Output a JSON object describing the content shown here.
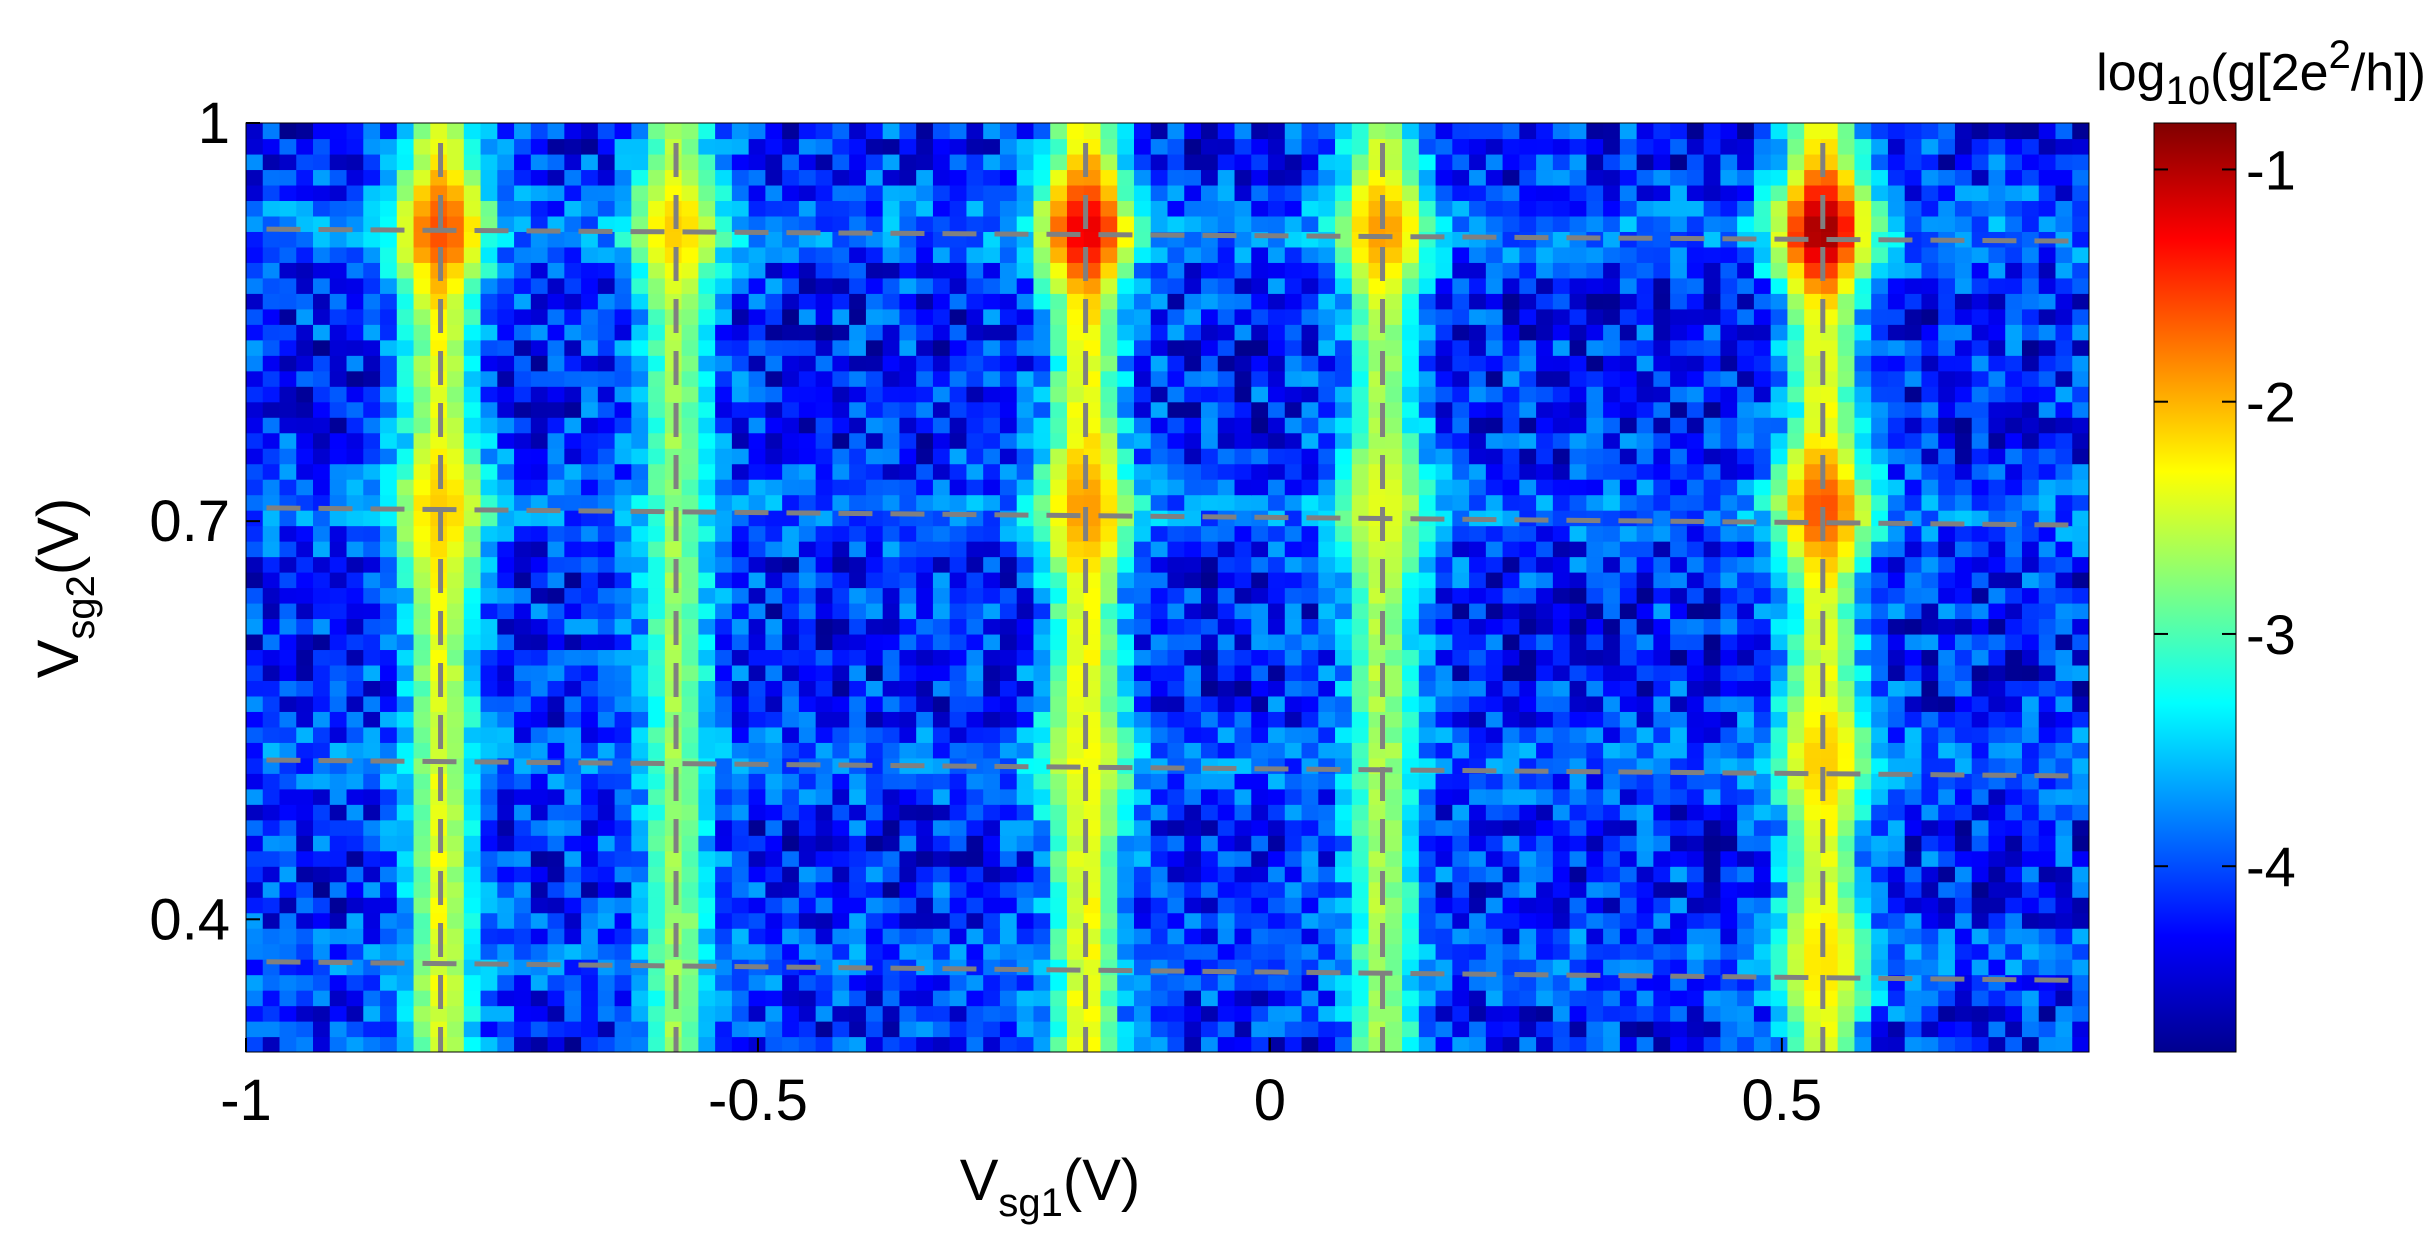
{
  "chart_data": {
    "type": "heatmap",
    "title": "",
    "xlabel": {
      "main": "V",
      "sub": "sg1",
      "unit": "(V)"
    },
    "ylabel": {
      "main": "V",
      "sub": "sg2",
      "unit": "(V)"
    },
    "xlim": [
      -1.0,
      0.8
    ],
    "ylim": [
      0.3,
      1.0
    ],
    "xticks": [
      -1,
      -0.5,
      0,
      0.5
    ],
    "xtick_labels": [
      "-1",
      "-0.5",
      "0",
      "0.5"
    ],
    "yticks": [
      0.4,
      0.7,
      1.0
    ],
    "ytick_labels": [
      "0.4",
      "0.7",
      "1"
    ],
    "grid": false,
    "colormap": "jet",
    "colorbar": {
      "label": {
        "prefix": "log",
        "sub": "10",
        "mid": "(g[2e",
        "sup": "2",
        "suffix": "/h])"
      },
      "range": [
        -4.8,
        -0.8
      ],
      "ticks": [
        -1,
        -2,
        -3,
        -4
      ],
      "tick_labels": [
        "-1",
        "-2",
        "-3",
        "-4"
      ]
    },
    "grid_size": {
      "nx": 110,
      "ny": 60
    },
    "background_level": -4.2,
    "noise_amplitude": 0.55,
    "resonance_columns": [
      {
        "vsg1": -0.81,
        "level": -2.4
      },
      {
        "vsg1": -0.58,
        "level": -2.7
      },
      {
        "vsg1": -0.18,
        "level": -2.3
      },
      {
        "vsg1": 0.11,
        "level": -2.6
      },
      {
        "vsg1": 0.54,
        "level": -2.4
      }
    ],
    "resonance_rows": [
      {
        "vsg2": 0.92,
        "level": -3.1
      },
      {
        "vsg2": 0.71,
        "level": -3.2
      },
      {
        "vsg2": 0.52,
        "level": -3.3
      },
      {
        "vsg2": 0.37,
        "level": -3.4
      }
    ],
    "peaks": [
      {
        "vsg1": -0.81,
        "vsg2": 0.92,
        "value": -1.6
      },
      {
        "vsg1": -0.58,
        "vsg2": 0.92,
        "value": -2.1
      },
      {
        "vsg1": -0.18,
        "vsg2": 0.92,
        "value": -1.2
      },
      {
        "vsg1": 0.11,
        "vsg2": 0.92,
        "value": -1.9
      },
      {
        "vsg1": 0.54,
        "vsg2": 0.92,
        "value": -0.9
      },
      {
        "vsg1": -0.81,
        "vsg2": 0.71,
        "value": -2.1
      },
      {
        "vsg1": -0.18,
        "vsg2": 0.71,
        "value": -1.9
      },
      {
        "vsg1": 0.11,
        "vsg2": 0.71,
        "value": -2.4
      },
      {
        "vsg1": 0.54,
        "vsg2": 0.71,
        "value": -1.6
      },
      {
        "vsg1": -0.18,
        "vsg2": 0.52,
        "value": -2.4
      },
      {
        "vsg1": 0.54,
        "vsg2": 0.52,
        "value": -2.1
      },
      {
        "vsg1": 0.54,
        "vsg2": 0.37,
        "value": -2.2
      }
    ],
    "guide_lines": {
      "color": "#808080",
      "horizontal": [
        {
          "from": [
            -0.98,
            0.92
          ],
          "to": [
            0.79,
            0.911
          ]
        },
        {
          "from": [
            -0.98,
            0.71
          ],
          "to": [
            0.79,
            0.697
          ]
        },
        {
          "from": [
            -0.98,
            0.52
          ],
          "to": [
            0.79,
            0.508
          ]
        },
        {
          "from": [
            -0.98,
            0.368
          ],
          "to": [
            0.79,
            0.354
          ]
        }
      ],
      "vertical": [
        -0.81,
        -0.58,
        -0.18,
        0.11,
        0.54
      ]
    }
  }
}
